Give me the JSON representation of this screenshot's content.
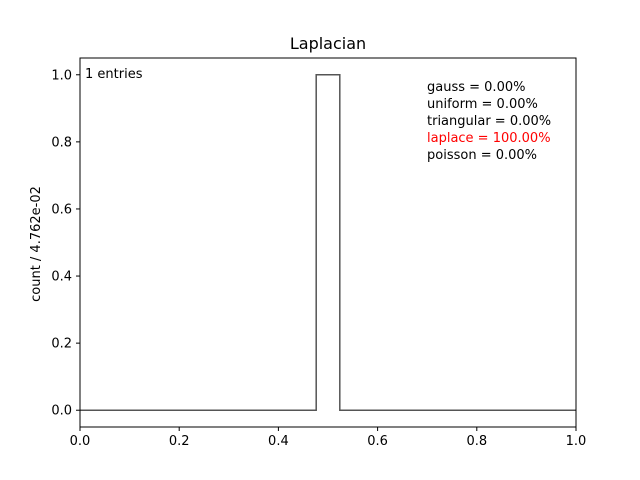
{
  "chart_data": {
    "type": "line",
    "title": "Laplacian",
    "xlabel": "",
    "ylabel": "count / 4.762e-02",
    "xlim": [
      0.0,
      1.0
    ],
    "ylim": [
      -0.05,
      1.05
    ],
    "x_ticks": [
      "0.0",
      "0.2",
      "0.4",
      "0.6",
      "0.8",
      "1.0"
    ],
    "y_ticks": [
      "0.0",
      "0.2",
      "0.4",
      "0.6",
      "0.8",
      "1.0"
    ],
    "grid": false,
    "series": [
      {
        "style": "step",
        "x": [
          0.0,
          0.4762,
          0.4762,
          0.5238,
          0.5238,
          1.0
        ],
        "y": [
          0.0,
          0.0,
          1.0,
          1.0,
          0.0,
          0.0
        ]
      }
    ],
    "entries_label": "1 entries",
    "fractions": [
      {
        "text": "gauss = 0.00%",
        "color": "#000000"
      },
      {
        "text": "uniform = 0.00%",
        "color": "#000000"
      },
      {
        "text": "triangular = 0.00%",
        "color": "#000000"
      },
      {
        "text": "laplace = 100.00%",
        "color": "#ff0000"
      },
      {
        "text": "poisson = 0.00%",
        "color": "#000000"
      }
    ],
    "line_color": "#555555"
  }
}
